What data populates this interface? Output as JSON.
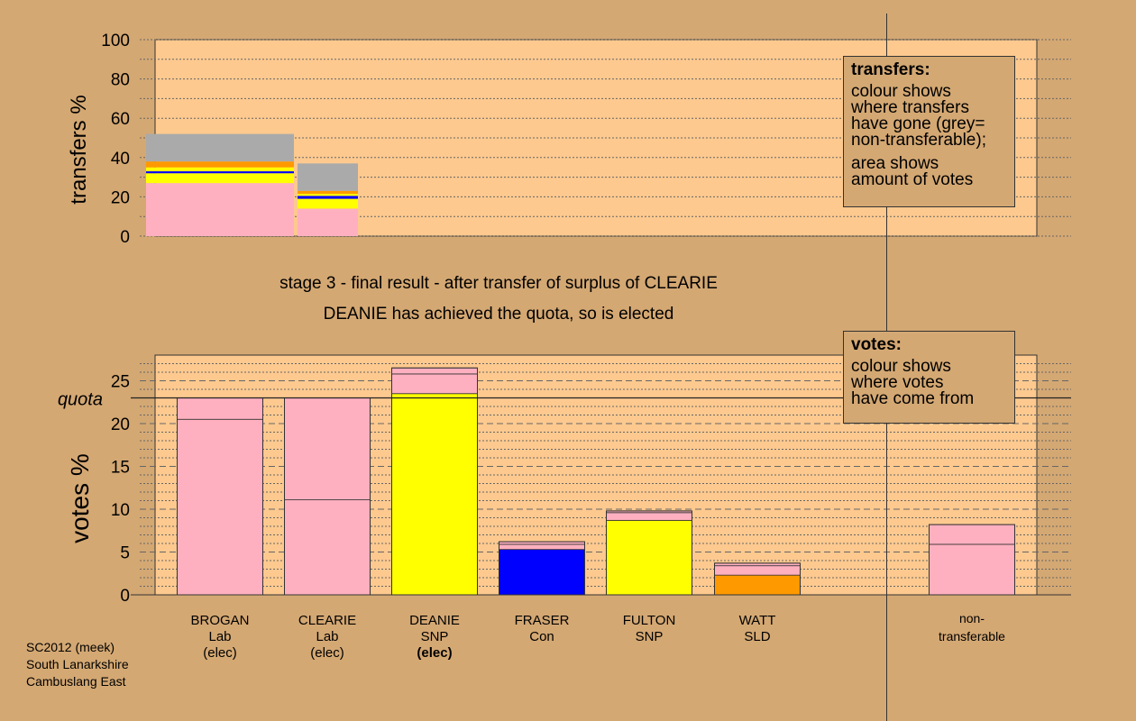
{
  "colors": {
    "background": "#d4a873",
    "plot_bg": "#fdc98f",
    "Lab": "#ffb0c0",
    "SNP": "#ffff00",
    "Con": "#0000ff",
    "SLD": "#ff9900",
    "non_transferable": "#aaaaaa"
  },
  "titles": {
    "stage": "stage 3 - final result - after transfer of surplus of CLEARIE",
    "status": "DEANIE has achieved the quota, so is elected"
  },
  "legend_transfers": {
    "title": "transfers:",
    "lines_a": [
      "colour shows",
      "where transfers",
      "have gone (grey=",
      "non-transferable);"
    ],
    "lines_b": [
      "area shows",
      "amount of votes"
    ]
  },
  "legend_votes": {
    "title": "votes:",
    "lines": [
      "colour shows",
      "where votes",
      "have come from"
    ]
  },
  "footer": [
    "SC2012 (meek)",
    "South Lanarkshire",
    "Cambuslang East"
  ],
  "chart_data": [
    {
      "type": "bar",
      "ylabel": "transfers %",
      "ylim": [
        0,
        100
      ],
      "yticks": [
        0,
        20,
        40,
        60,
        80,
        100
      ],
      "grid": "dotted",
      "bars": [
        {
          "segments": [
            {
              "party": "Lab",
              "value": 27.0
            },
            {
              "party": "SNP",
              "value": 5.0
            },
            {
              "party": "Con",
              "value": 1.0
            },
            {
              "party": "SNP",
              "value": 2.0
            },
            {
              "party": "SLD",
              "value": 3.0
            },
            {
              "party": "non_transferable",
              "value": 14.0
            }
          ]
        },
        {
          "segments": [
            {
              "party": "Lab",
              "value": 14.0
            },
            {
              "party": "SNP",
              "value": 5.0
            },
            {
              "party": "Con",
              "value": 1.5
            },
            {
              "party": "SNP",
              "value": 1.0
            },
            {
              "party": "SLD",
              "value": 1.5
            },
            {
              "party": "non_transferable",
              "value": 14.0
            }
          ]
        }
      ]
    },
    {
      "type": "bar",
      "ylabel": "votes %",
      "ylim": [
        0,
        28
      ],
      "yticks": [
        0,
        5,
        10,
        15,
        20,
        25
      ],
      "quota": 23.0,
      "quota_label": "quota",
      "grid": "dashed",
      "candidates": [
        {
          "name": "BROGAN",
          "party": "Lab",
          "note": "(elec)",
          "note_bold": false,
          "segments": [
            {
              "party": "Lab",
              "value": 20.5
            },
            {
              "party": "Lab",
              "value": 2.5
            }
          ]
        },
        {
          "name": "CLEARIE",
          "party": "Lab",
          "note": "(elec)",
          "note_bold": false,
          "segments": [
            {
              "party": "Lab",
              "value": 11.1
            },
            {
              "party": "Lab",
              "value": 11.9
            }
          ]
        },
        {
          "name": "DEANIE",
          "party": "SNP",
          "note": "(elec)",
          "note_bold": true,
          "segments": [
            {
              "party": "SNP",
              "value": 23.5
            },
            {
              "party": "Lab",
              "value": 2.3
            },
            {
              "party": "Lab",
              "value": 0.7
            }
          ]
        },
        {
          "name": "FRASER",
          "party": "Con",
          "note": "",
          "note_bold": false,
          "segments": [
            {
              "party": "Con",
              "value": 5.3
            },
            {
              "party": "Lab",
              "value": 0.6
            },
            {
              "party": "Lab",
              "value": 0.3
            }
          ]
        },
        {
          "name": "FULTON",
          "party": "SNP",
          "note": "",
          "note_bold": false,
          "segments": [
            {
              "party": "SNP",
              "value": 8.7
            },
            {
              "party": "Lab",
              "value": 0.9
            },
            {
              "party": "Lab",
              "value": 0.2
            }
          ]
        },
        {
          "name": "WATT",
          "party": "SLD",
          "note": "",
          "note_bold": false,
          "segments": [
            {
              "party": "SLD",
              "value": 2.3
            },
            {
              "party": "Lab",
              "value": 1.1
            },
            {
              "party": "Lab",
              "value": 0.3
            }
          ]
        }
      ],
      "non_transferable": {
        "label": [
          "non-",
          "transferable"
        ],
        "segments": [
          {
            "party": "Lab",
            "value": 5.9
          },
          {
            "party": "Lab",
            "value": 2.3
          }
        ]
      }
    }
  ]
}
